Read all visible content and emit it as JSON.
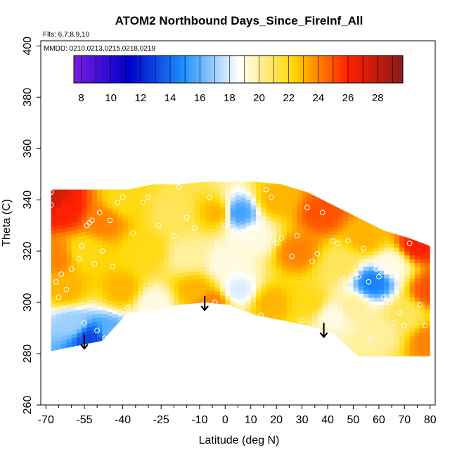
{
  "header": {
    "title": "ATOM2 Northbound Days_Since_FireInf_All",
    "flights": "Flts: 6,7,8,9,10",
    "mmdd": "MMDD: 0210,0213,0215,0218,0219"
  },
  "chart_data": {
    "type": "heatmap",
    "title": "ATOM2 Northbound Days_Since_FireInf_All",
    "xlabel": "Latitude (deg N)",
    "ylabel": "Theta (C)",
    "xlim": [
      -72,
      82
    ],
    "ylim": [
      260,
      402
    ],
    "x_ticks": [
      -70,
      -55,
      -40,
      -25,
      -10,
      0,
      10,
      20,
      30,
      40,
      50,
      60,
      70,
      80
    ],
    "x_minor_ticks": [
      -65,
      -60,
      -50,
      -45,
      -35,
      -30,
      -20,
      -15,
      -5,
      5,
      15,
      25,
      35,
      45,
      55,
      65,
      75
    ],
    "y_ticks": [
      260,
      280,
      300,
      320,
      340,
      360,
      380,
      400
    ],
    "colorbar": {
      "min": 7.5,
      "max": 29.7,
      "ticks": [
        8,
        10,
        12,
        14,
        16,
        18,
        20,
        22,
        24,
        26,
        28
      ],
      "colors": [
        "#7A1FE0",
        "#0000C8",
        "#1E90FF",
        "#FFFFFF",
        "#FFD700",
        "#FF2000",
        "#8B1A1A"
      ]
    },
    "grid": {
      "x": [
        -68,
        -58,
        -48,
        -38,
        -28,
        -18,
        -8,
        2,
        12,
        22,
        32,
        42,
        52,
        62,
        72,
        80
      ],
      "top": [
        344,
        344,
        344,
        344,
        346,
        346,
        347,
        347,
        347,
        346,
        343,
        338,
        333,
        328,
        325,
        322
      ],
      "bottom": [
        281,
        283,
        285,
        296,
        297,
        299,
        300,
        299,
        295,
        293,
        291,
        288,
        279,
        279,
        279,
        279
      ]
    },
    "field_points": [
      {
        "x": -68,
        "y": 340,
        "v": 27.5
      },
      {
        "x": -62,
        "y": 336,
        "v": 26
      },
      {
        "x": -66,
        "y": 318,
        "v": 24
      },
      {
        "x": -62,
        "y": 305,
        "v": 23
      },
      {
        "x": -60,
        "y": 292,
        "v": 17
      },
      {
        "x": -52,
        "y": 286,
        "v": 13
      },
      {
        "x": -45,
        "y": 288,
        "v": 16
      },
      {
        "x": -55,
        "y": 320,
        "v": 22
      },
      {
        "x": -48,
        "y": 332,
        "v": 24
      },
      {
        "x": -40,
        "y": 340,
        "v": 22
      },
      {
        "x": -40,
        "y": 305,
        "v": 23
      },
      {
        "x": -30,
        "y": 320,
        "v": 22
      },
      {
        "x": -28,
        "y": 300,
        "v": 19
      },
      {
        "x": -20,
        "y": 335,
        "v": 21
      },
      {
        "x": -15,
        "y": 318,
        "v": 20
      },
      {
        "x": -12,
        "y": 305,
        "v": 23
      },
      {
        "x": -5,
        "y": 300,
        "v": 24
      },
      {
        "x": -3,
        "y": 335,
        "v": 23
      },
      {
        "x": 0,
        "y": 315,
        "v": 19
      },
      {
        "x": 5,
        "y": 335,
        "v": 15.5
      },
      {
        "x": 5,
        "y": 305,
        "v": 18
      },
      {
        "x": 12,
        "y": 325,
        "v": 19
      },
      {
        "x": 18,
        "y": 300,
        "v": 23
      },
      {
        "x": 20,
        "y": 340,
        "v": 23
      },
      {
        "x": 28,
        "y": 320,
        "v": 24
      },
      {
        "x": 33,
        "y": 300,
        "v": 22
      },
      {
        "x": 38,
        "y": 335,
        "v": 25
      },
      {
        "x": 42,
        "y": 295,
        "v": 19
      },
      {
        "x": 45,
        "y": 315,
        "v": 21
      },
      {
        "x": 50,
        "y": 298,
        "v": 20
      },
      {
        "x": 55,
        "y": 325,
        "v": 23
      },
      {
        "x": 58,
        "y": 308,
        "v": 14.5
      },
      {
        "x": 60,
        "y": 288,
        "v": 20
      },
      {
        "x": 65,
        "y": 315,
        "v": 19
      },
      {
        "x": 70,
        "y": 295,
        "v": 21
      },
      {
        "x": 75,
        "y": 322,
        "v": 26
      },
      {
        "x": 80,
        "y": 305,
        "v": 25
      },
      {
        "x": 80,
        "y": 285,
        "v": 24
      }
    ],
    "samples": [
      {
        "x": -68,
        "y": 343
      },
      {
        "x": -68,
        "y": 338
      },
      {
        "x": -66,
        "y": 308
      },
      {
        "x": -65,
        "y": 302
      },
      {
        "x": -64,
        "y": 311
      },
      {
        "x": -63,
        "y": 281
      },
      {
        "x": -62,
        "y": 305
      },
      {
        "x": -60,
        "y": 313
      },
      {
        "x": -58,
        "y": 282
      },
      {
        "x": -57,
        "y": 317
      },
      {
        "x": -56,
        "y": 322
      },
      {
        "x": -55,
        "y": 292
      },
      {
        "x": -54,
        "y": 330
      },
      {
        "x": -53,
        "y": 331
      },
      {
        "x": -52,
        "y": 332
      },
      {
        "x": -51,
        "y": 315
      },
      {
        "x": -50,
        "y": 289
      },
      {
        "x": -49,
        "y": 335
      },
      {
        "x": -48,
        "y": 320
      },
      {
        "x": -47,
        "y": 286
      },
      {
        "x": -45,
        "y": 332
      },
      {
        "x": -44,
        "y": 314
      },
      {
        "x": -42,
        "y": 339
      },
      {
        "x": -40,
        "y": 341
      },
      {
        "x": -38,
        "y": 298
      },
      {
        "x": -36,
        "y": 327
      },
      {
        "x": -32,
        "y": 339
      },
      {
        "x": -30,
        "y": 341
      },
      {
        "x": -26,
        "y": 330
      },
      {
        "x": -22,
        "y": 298
      },
      {
        "x": -20,
        "y": 326
      },
      {
        "x": -18,
        "y": 345
      },
      {
        "x": -15,
        "y": 333
      },
      {
        "x": -12,
        "y": 329
      },
      {
        "x": -6,
        "y": 341
      },
      {
        "x": -4,
        "y": 300
      },
      {
        "x": -3,
        "y": 322
      },
      {
        "x": 0,
        "y": 330
      },
      {
        "x": 2,
        "y": 324
      },
      {
        "x": 4,
        "y": 328
      },
      {
        "x": 6,
        "y": 343
      },
      {
        "x": 8,
        "y": 325
      },
      {
        "x": 10,
        "y": 329
      },
      {
        "x": 12,
        "y": 329
      },
      {
        "x": 14,
        "y": 295
      },
      {
        "x": 16,
        "y": 344
      },
      {
        "x": 18,
        "y": 341
      },
      {
        "x": 20,
        "y": 323
      },
      {
        "x": 22,
        "y": 325
      },
      {
        "x": 24,
        "y": 347
      },
      {
        "x": 26,
        "y": 318
      },
      {
        "x": 28,
        "y": 326
      },
      {
        "x": 30,
        "y": 293
      },
      {
        "x": 32,
        "y": 337
      },
      {
        "x": 34,
        "y": 316
      },
      {
        "x": 36,
        "y": 319
      },
      {
        "x": 38,
        "y": 335
      },
      {
        "x": 40,
        "y": 293
      },
      {
        "x": 42,
        "y": 324
      },
      {
        "x": 44,
        "y": 323
      },
      {
        "x": 46,
        "y": 309
      },
      {
        "x": 48,
        "y": 324
      },
      {
        "x": 50,
        "y": 289
      },
      {
        "x": 52,
        "y": 310
      },
      {
        "x": 54,
        "y": 321
      },
      {
        "x": 56,
        "y": 308
      },
      {
        "x": 57,
        "y": 286
      },
      {
        "x": 59,
        "y": 313
      },
      {
        "x": 60,
        "y": 310
      },
      {
        "x": 62,
        "y": 302
      },
      {
        "x": 64,
        "y": 300
      },
      {
        "x": 66,
        "y": 292
      },
      {
        "x": 68,
        "y": 296
      },
      {
        "x": 70,
        "y": 291
      },
      {
        "x": 72,
        "y": 323
      },
      {
        "x": 76,
        "y": 299
      },
      {
        "x": 78,
        "y": 291
      },
      {
        "x": 80,
        "y": 323
      },
      {
        "x": 80,
        "y": 277
      }
    ],
    "arrows": [
      {
        "x": -55,
        "y_from": 287.5,
        "y_to": 282
      },
      {
        "x": -8,
        "y_from": 302.5,
        "y_to": 297
      },
      {
        "x": 38.5,
        "y_from": 292,
        "y_to": 286.5
      }
    ]
  }
}
